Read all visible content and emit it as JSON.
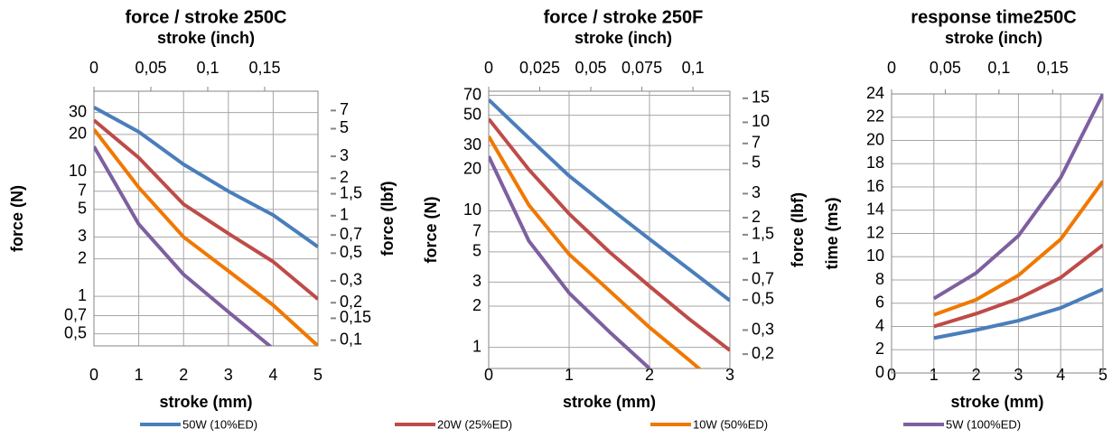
{
  "chart_data": [
    {
      "type": "line",
      "title": "force / stroke 250C",
      "x2label": "stroke (inch)",
      "xlabel": "stroke (mm)",
      "ylabel": "force (N)",
      "y2label": "force (lbf)",
      "x": [
        0,
        1,
        2,
        3,
        4,
        5
      ],
      "xlim": [
        0,
        5
      ],
      "xticks": [
        0,
        1,
        2,
        3,
        4,
        5
      ],
      "x2lim": [
        0,
        0.19685
      ],
      "x2ticks": [
        0,
        {
          "value": 0.05,
          "label": "0,05"
        },
        {
          "value": 0.1,
          "label": "0,1"
        },
        {
          "value": 0.15,
          "label": "0,15"
        }
      ],
      "yscale": "log",
      "ylim": [
        0.4,
        44.5
      ],
      "yticks": [
        {
          "value": 0.5,
          "label": "0,5"
        },
        {
          "value": 0.7,
          "label": "0,7"
        },
        1,
        2,
        3,
        5,
        7,
        10,
        20,
        30
      ],
      "y2lim": [
        0.09,
        10
      ],
      "y2ticks": [
        {
          "value": 0.1,
          "label": "0,1"
        },
        {
          "value": 0.15,
          "label": "0,15"
        },
        {
          "value": 0.2,
          "label": "0,2"
        },
        {
          "value": 0.3,
          "label": "0,3"
        },
        {
          "value": 0.5,
          "label": "0,5"
        },
        {
          "value": 0.7,
          "label": "0,7"
        },
        1,
        {
          "value": 1.5,
          "label": "1,5"
        },
        2,
        3,
        5,
        7
      ],
      "grid": true,
      "legend": "bottom",
      "series": [
        {
          "name": "50W (10%ED)",
          "color": "#4a7ebb",
          "values": [
            33,
            21,
            11.5,
            7,
            4.5,
            2.5
          ]
        },
        {
          "name": "20W (25%ED)",
          "color": "#be4b48",
          "values": [
            26,
            13,
            5.5,
            3.2,
            1.9,
            0.95
          ]
        },
        {
          "name": "10W (50%ED)",
          "color": "#f07800",
          "values": [
            22,
            7.5,
            3,
            1.6,
            0.85,
            0.4
          ]
        },
        {
          "name": "5W (100%ED)",
          "color": "#7e5fa0",
          "values": [
            16,
            3.8,
            1.5,
            0.75,
            0.38,
            null
          ]
        }
      ]
    },
    {
      "type": "line",
      "title": "force / stroke 250F",
      "x2label": "stroke (inch)",
      "xlabel": "stroke (mm)",
      "ylabel": "force (N)",
      "y2label": "force (lbf)",
      "x": [
        0,
        0.5,
        1,
        1.5,
        2,
        2.5,
        3
      ],
      "xlim": [
        0,
        3
      ],
      "xticks": [
        0,
        1,
        2,
        3
      ],
      "x2lim": [
        0,
        0.1181
      ],
      "x2ticks": [
        0,
        {
          "value": 0.025,
          "label": "0,025"
        },
        {
          "value": 0.05,
          "label": "0,05"
        },
        {
          "value": 0.075,
          "label": "0,075"
        },
        {
          "value": 0.1,
          "label": "0,1"
        }
      ],
      "yscale": "log",
      "ylim": [
        0.7,
        75
      ],
      "yticks": [
        1,
        2,
        3,
        5,
        7,
        10,
        20,
        30,
        50,
        70
      ],
      "y2lim": [
        0.157,
        16.9
      ],
      "y2ticks": [
        {
          "value": 0.2,
          "label": "0,2"
        },
        {
          "value": 0.3,
          "label": "0,3"
        },
        {
          "value": 0.5,
          "label": "0,5"
        },
        {
          "value": 0.7,
          "label": "0,7"
        },
        1,
        {
          "value": 1.5,
          "label": "1,5"
        },
        2,
        3,
        5,
        7,
        10,
        15
      ],
      "grid": true,
      "series": [
        {
          "color": "#4a7ebb",
          "values": [
            65,
            34,
            18,
            10.5,
            6.2,
            3.7,
            2.2
          ]
        },
        {
          "color": "#be4b48",
          "values": [
            47,
            20,
            9.5,
            5,
            2.8,
            1.6,
            0.95
          ]
        },
        {
          "color": "#f07800",
          "values": [
            35,
            11,
            4.8,
            2.6,
            1.4,
            0.8,
            0.45
          ]
        },
        {
          "color": "#7e5fa0",
          "values": [
            25,
            6,
            2.5,
            1.3,
            0.7,
            null,
            null
          ]
        }
      ]
    },
    {
      "type": "line",
      "title": "response time250C",
      "x2label": "stroke (inch)",
      "xlabel": "stroke (mm)",
      "ylabel": "time (ms)",
      "x": [
        1,
        2,
        3,
        4,
        5
      ],
      "xlim": [
        0,
        5
      ],
      "xticks": [
        0,
        1,
        2,
        3,
        4,
        5
      ],
      "x2lim": [
        0,
        0.19685
      ],
      "x2ticks": [
        0,
        {
          "value": 0.05,
          "label": "0,05"
        },
        {
          "value": 0.1,
          "label": "0,1"
        },
        {
          "value": 0.15,
          "label": "0,15"
        }
      ],
      "ylim": [
        0,
        24
      ],
      "yticks": [
        0,
        2,
        4,
        6,
        8,
        10,
        12,
        14,
        16,
        18,
        20,
        22,
        24
      ],
      "grid": true,
      "series": [
        {
          "color": "#4a7ebb",
          "values": [
            3,
            3.7,
            4.5,
            5.6,
            7.2
          ]
        },
        {
          "color": "#be4b48",
          "values": [
            4,
            5.1,
            6.4,
            8.2,
            11
          ]
        },
        {
          "color": "#f07800",
          "values": [
            5,
            6.3,
            8.4,
            11.5,
            16.5
          ]
        },
        {
          "color": "#7e5fa0",
          "values": [
            6.4,
            8.6,
            11.8,
            16.8,
            24
          ]
        }
      ]
    }
  ]
}
